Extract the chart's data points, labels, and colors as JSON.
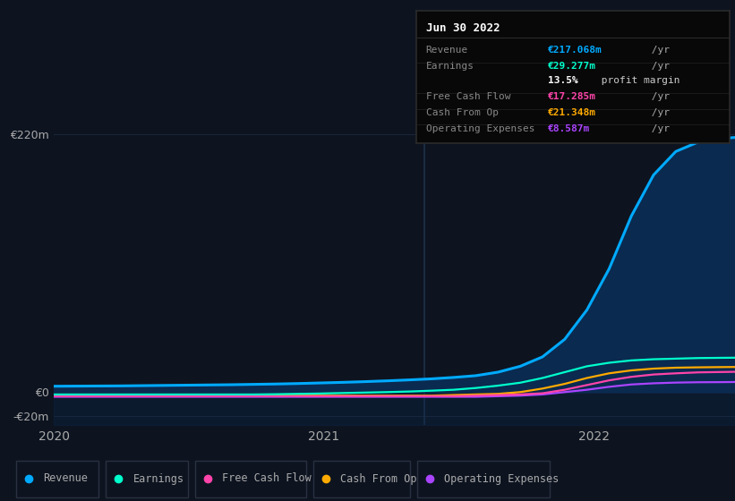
{
  "bg_color": "#0d1420",
  "plot_bg_color": "#0d1420",
  "grid_color": "#1a2535",
  "yticks": [
    -20,
    0,
    220
  ],
  "ytick_labels": [
    "-€20m",
    "€0",
    "€220m"
  ],
  "ylim": [
    -28,
    235
  ],
  "xlim": [
    0,
    920
  ],
  "xticks": [
    0,
    365,
    730
  ],
  "xtick_labels": [
    "2020",
    "2021",
    "2022"
  ],
  "series": {
    "Revenue": {
      "color": "#00aaff",
      "fill_color": "#0a2a50",
      "values_x": [
        0,
        30,
        60,
        90,
        120,
        150,
        180,
        210,
        240,
        270,
        300,
        330,
        360,
        390,
        420,
        450,
        480,
        510,
        540,
        570,
        600,
        630,
        660,
        690,
        720,
        750,
        780,
        810,
        840,
        870,
        900,
        920
      ],
      "values_y": [
        5.0,
        5.1,
        5.2,
        5.3,
        5.5,
        5.7,
        5.9,
        6.1,
        6.3,
        6.6,
        6.9,
        7.3,
        7.8,
        8.3,
        8.9,
        9.6,
        10.4,
        11.3,
        12.5,
        14.0,
        17.0,
        22.0,
        30.0,
        45.0,
        70.0,
        105.0,
        150.0,
        185.0,
        205.0,
        213.0,
        216.0,
        217.0
      ]
    },
    "Earnings": {
      "color": "#00ffcc",
      "values_x": [
        0,
        30,
        60,
        90,
        120,
        150,
        180,
        210,
        240,
        270,
        300,
        330,
        360,
        390,
        420,
        450,
        480,
        510,
        540,
        570,
        600,
        630,
        660,
        690,
        720,
        750,
        780,
        810,
        840,
        870,
        900,
        920
      ],
      "values_y": [
        -2.0,
        -2.0,
        -2.0,
        -2.0,
        -2.0,
        -2.0,
        -2.0,
        -2.0,
        -2.0,
        -2.0,
        -1.8,
        -1.5,
        -1.2,
        -0.8,
        -0.4,
        0.0,
        0.5,
        1.2,
        2.0,
        3.5,
        5.5,
        8.0,
        12.0,
        17.0,
        22.0,
        25.0,
        27.0,
        28.0,
        28.5,
        29.0,
        29.2,
        29.3
      ]
    },
    "Free Cash Flow": {
      "color": "#ff44aa",
      "values_x": [
        0,
        30,
        60,
        90,
        120,
        150,
        180,
        210,
        240,
        270,
        300,
        330,
        360,
        390,
        420,
        450,
        480,
        510,
        540,
        570,
        600,
        630,
        660,
        690,
        720,
        750,
        780,
        810,
        840,
        870,
        900,
        920
      ],
      "values_y": [
        -3.5,
        -3.5,
        -3.5,
        -3.5,
        -3.5,
        -3.5,
        -3.5,
        -3.5,
        -3.5,
        -3.5,
        -3.5,
        -3.5,
        -3.5,
        -3.5,
        -3.5,
        -3.5,
        -3.5,
        -3.5,
        -3.5,
        -3.0,
        -2.5,
        -2.0,
        -1.0,
        2.0,
        6.0,
        10.0,
        13.0,
        15.0,
        16.0,
        16.8,
        17.1,
        17.3
      ]
    },
    "Cash From Op": {
      "color": "#ffaa00",
      "values_x": [
        0,
        30,
        60,
        90,
        120,
        150,
        180,
        210,
        240,
        270,
        300,
        330,
        360,
        390,
        420,
        450,
        480,
        510,
        540,
        570,
        600,
        630,
        660,
        690,
        720,
        750,
        780,
        810,
        840,
        870,
        900,
        920
      ],
      "values_y": [
        -3.0,
        -3.0,
        -3.0,
        -3.0,
        -3.0,
        -3.0,
        -3.0,
        -3.0,
        -3.0,
        -3.0,
        -3.0,
        -3.0,
        -3.0,
        -3.0,
        -3.0,
        -3.0,
        -3.0,
        -3.0,
        -2.5,
        -2.0,
        -1.5,
        0.0,
        3.0,
        7.0,
        12.0,
        16.0,
        18.5,
        20.0,
        20.8,
        21.1,
        21.3,
        21.4
      ]
    },
    "Operating Expenses": {
      "color": "#aa44ff",
      "values_x": [
        0,
        30,
        60,
        90,
        120,
        150,
        180,
        210,
        240,
        270,
        300,
        330,
        360,
        390,
        420,
        450,
        480,
        510,
        540,
        570,
        600,
        630,
        660,
        690,
        720,
        750,
        780,
        810,
        840,
        870,
        900,
        920
      ],
      "values_y": [
        -4.0,
        -4.0,
        -4.0,
        -4.0,
        -4.0,
        -4.0,
        -4.0,
        -4.0,
        -4.0,
        -4.0,
        -4.0,
        -4.0,
        -4.0,
        -4.0,
        -4.0,
        -4.0,
        -4.0,
        -4.0,
        -4.0,
        -4.0,
        -3.5,
        -3.0,
        -2.0,
        0.0,
        2.0,
        4.5,
        6.5,
        7.5,
        8.1,
        8.4,
        8.5,
        8.6
      ]
    }
  },
  "tooltip": {
    "title": "Jun 30 2022",
    "title_color": "#ffffff",
    "bg_color": "#080808",
    "border_color": "#2a2a2a",
    "rows": [
      {
        "label": "Revenue",
        "value": "€217.068m /yr",
        "value_color": "#00aaff",
        "label_color": "#888888"
      },
      {
        "label": "Earnings",
        "value": "€29.277m /yr",
        "value_color": "#00ffcc",
        "label_color": "#888888"
      },
      {
        "label": "",
        "value": "",
        "value_color": "#ffffff",
        "label_color": "#888888"
      },
      {
        "label": "Free Cash Flow",
        "value": "€17.285m /yr",
        "value_color": "#ff44aa",
        "label_color": "#888888"
      },
      {
        "label": "Cash From Op",
        "value": "€21.348m /yr",
        "value_color": "#ffaa00",
        "label_color": "#888888"
      },
      {
        "label": "Operating Expenses",
        "value": "€8.587m /yr",
        "value_color": "#aa44ff",
        "label_color": "#888888"
      }
    ]
  },
  "legend": [
    {
      "label": "Revenue",
      "color": "#00aaff"
    },
    {
      "label": "Earnings",
      "color": "#00ffcc"
    },
    {
      "label": "Free Cash Flow",
      "color": "#ff44aa"
    },
    {
      "label": "Cash From Op",
      "color": "#ffaa00"
    },
    {
      "label": "Operating Expenses",
      "color": "#aa44ff"
    }
  ],
  "vline_x": 500,
  "vline_color": "#1e3048",
  "zero_line_color": "#ffffff",
  "zero_line_alpha": 0.4
}
